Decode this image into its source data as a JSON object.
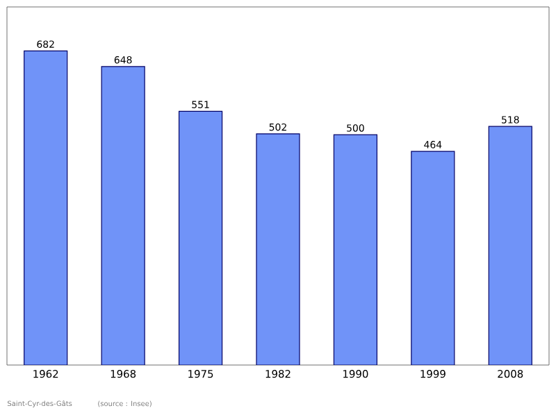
{
  "chart_data": {
    "type": "bar",
    "categories": [
      "1962",
      "1968",
      "1975",
      "1982",
      "1990",
      "1999",
      "2008"
    ],
    "values": [
      682,
      648,
      551,
      502,
      500,
      464,
      518
    ],
    "color": "#7093f8",
    "data_labels": true,
    "annotations": [
      "Saint-Cyr-des-Gâts",
      "(source : Insee)"
    ]
  }
}
